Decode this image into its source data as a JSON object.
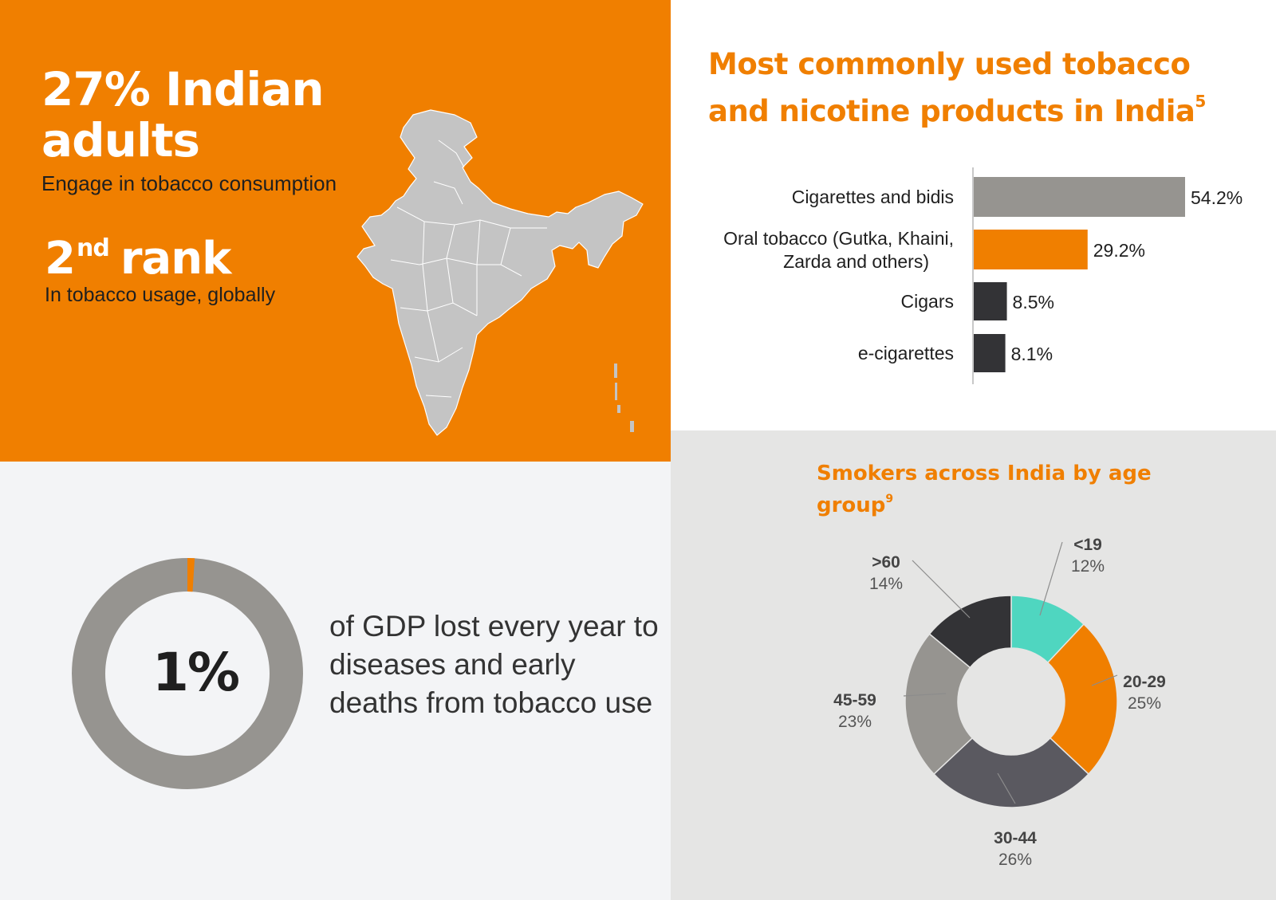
{
  "stats": {
    "adults_headline": "27% Indian adults",
    "adults_caption": "Engage in tobacco consumption",
    "rank_number": "2",
    "rank_suffix": "nd",
    "rank_word": "rank",
    "rank_caption": "In tobacco usage, globally",
    "gdp_value": "1%",
    "gdp_text": "of GDP lost every year to diseases and early deaths from tobacco use",
    "gdp_fraction": 1
  },
  "colors": {
    "orange": "#f07f00",
    "grey": "#969490",
    "dark": "#333336",
    "slate": "#5a5960",
    "teal": "#4fd6c0",
    "map_fill": "#c4c4c4"
  },
  "bar_chart": {
    "title": "Most commonly used tobacco and nicotine products in India",
    "footnote": "5"
  },
  "age_chart": {
    "title": "Smokers across India by age group",
    "footnote": "9"
  },
  "chart_data": [
    {
      "type": "bar",
      "orientation": "horizontal",
      "categories": [
        "Cigarettes and bidis",
        "Oral tobacco (Gutka, Khaini, Zarda and others)",
        "Cigars",
        "e-cigarettes"
      ],
      "values": [
        54.2,
        29.2,
        8.5,
        8.1
      ],
      "value_labels": [
        "54.2%",
        "29.2%",
        "8.5%",
        "8.1%"
      ],
      "colors": [
        "#969490",
        "#f07f00",
        "#333336",
        "#333336"
      ],
      "title": "Most commonly used tobacco and nicotine products in India",
      "xlim": [
        0,
        54.2
      ]
    },
    {
      "type": "pie",
      "donut": true,
      "categories": [
        "<19",
        "20-29",
        "30-44",
        "45-59",
        ">60"
      ],
      "values": [
        12,
        25,
        26,
        23,
        14
      ],
      "value_labels": [
        "12%",
        "25%",
        "26%",
        "23%",
        "14%"
      ],
      "colors": [
        "#4fd6c0",
        "#f07f00",
        "#5a5960",
        "#969490",
        "#333336"
      ],
      "title": "Smokers across India by age group"
    }
  ]
}
